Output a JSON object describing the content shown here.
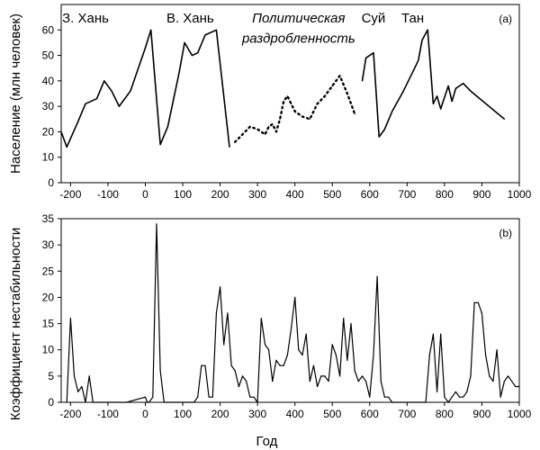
{
  "chart_data": [
    {
      "id": "a",
      "type": "line",
      "panel_label": "(a)",
      "ylabel": "Население (млн человек)",
      "xlabel": "",
      "xlim": [
        -225,
        1000
      ],
      "ylim": [
        0,
        70
      ],
      "xticks": [
        "-200",
        "-100",
        "0",
        "100",
        "200",
        "300",
        "400",
        "500",
        "600",
        "700",
        "800",
        "900",
        "1000"
      ],
      "xtick_values": [
        -200,
        -100,
        0,
        100,
        200,
        300,
        400,
        500,
        600,
        700,
        800,
        900,
        1000
      ],
      "yticks": [
        "0",
        "10",
        "20",
        "30",
        "40",
        "50",
        "60"
      ],
      "ytick_values": [
        0,
        10,
        20,
        30,
        40,
        50,
        60
      ],
      "era_labels": [
        {
          "text": "З. Хань",
          "x": -160,
          "y": 63,
          "italic": false
        },
        {
          "text": "В. Хань",
          "x": 120,
          "y": 63,
          "italic": false
        },
        {
          "text": "Политическая",
          "x": 410,
          "y": 63,
          "italic": true
        },
        {
          "text": "раздробленность",
          "x": 410,
          "y": 55,
          "italic": true
        },
        {
          "text": "Суй",
          "x": 610,
          "y": 63,
          "italic": false
        },
        {
          "text": "Тан",
          "x": 715,
          "y": 63,
          "italic": false
        }
      ],
      "series": [
        {
          "name": "Западная Хань",
          "style": "solid",
          "x": [
            -225,
            -210,
            -180,
            -160,
            -130,
            -110,
            -90,
            -70,
            -40,
            0,
            15
          ],
          "y": [
            20,
            14,
            24,
            31,
            33,
            40,
            36,
            30,
            36,
            53,
            60
          ]
        },
        {
          "name": "Восточная Хань",
          "style": "solid",
          "x": [
            15,
            40,
            60,
            90,
            105,
            125,
            140,
            160,
            190,
            225
          ],
          "y": [
            60,
            15,
            22,
            43,
            55,
            50,
            51,
            58,
            60,
            14
          ]
        },
        {
          "name": "Политическая раздробленность",
          "style": "dotted",
          "x": [
            240,
            260,
            280,
            300,
            320,
            330,
            340,
            350,
            360,
            370,
            380,
            390,
            400,
            420,
            440,
            460,
            480,
            500,
            520,
            540,
            560
          ],
          "y": [
            16,
            19,
            22,
            21,
            19,
            22,
            23,
            20,
            25,
            32,
            34,
            31,
            28,
            26,
            25,
            31,
            34,
            38,
            42,
            35,
            27
          ]
        },
        {
          "name": "Суй",
          "style": "solid",
          "x": [
            580,
            590,
            600,
            610,
            625
          ],
          "y": [
            40,
            49,
            50,
            51,
            18
          ]
        },
        {
          "name": "Тан",
          "style": "solid",
          "x": [
            625,
            640,
            660,
            690,
            720,
            730,
            740,
            755,
            770,
            780,
            790,
            810,
            820,
            830,
            840,
            850,
            870,
            960
          ],
          "y": [
            18,
            21,
            28,
            36,
            45,
            48,
            56,
            60,
            31,
            34,
            29,
            38,
            32,
            37,
            38,
            39,
            36,
            25
          ]
        }
      ]
    },
    {
      "id": "b",
      "type": "line",
      "panel_label": "(b)",
      "ylabel": "Коэффициент нестабильности",
      "xlabel": "Год",
      "xlim": [
        -225,
        1000
      ],
      "ylim": [
        0,
        35
      ],
      "xticks": [
        "-200",
        "-100",
        "0",
        "100",
        "200",
        "300",
        "400",
        "500",
        "600",
        "700",
        "800",
        "900",
        "1000"
      ],
      "xtick_values": [
        -200,
        -100,
        0,
        100,
        200,
        300,
        400,
        500,
        600,
        700,
        800,
        900,
        1000
      ],
      "yticks": [
        "0",
        "5",
        "10",
        "15",
        "20",
        "25",
        "30",
        "35"
      ],
      "ytick_values": [
        0,
        5,
        10,
        15,
        20,
        25,
        30,
        35
      ],
      "series": [
        {
          "name": "Нестабильность",
          "style": "solid",
          "x": [
            -210,
            -200,
            -190,
            -180,
            -170,
            -160,
            -150,
            -140,
            -130,
            -120,
            -100,
            -50,
            0,
            5,
            10,
            20,
            30,
            40,
            50,
            60,
            100,
            130,
            140,
            150,
            160,
            170,
            180,
            190,
            200,
            210,
            220,
            230,
            240,
            250,
            260,
            270,
            280,
            290,
            300,
            310,
            320,
            330,
            340,
            350,
            360,
            370,
            380,
            390,
            400,
            410,
            420,
            430,
            440,
            450,
            460,
            470,
            480,
            490,
            500,
            510,
            520,
            530,
            540,
            550,
            560,
            570,
            580,
            590,
            600,
            610,
            620,
            630,
            640,
            650,
            660,
            670,
            700,
            740,
            750,
            760,
            770,
            780,
            790,
            800,
            810,
            820,
            830,
            840,
            850,
            860,
            870,
            880,
            890,
            900,
            910,
            920,
            930,
            940,
            950,
            960,
            970,
            980,
            990,
            1000
          ],
          "y": [
            0,
            16,
            5,
            2,
            3,
            0,
            5,
            0,
            0,
            0,
            0,
            0,
            1,
            0,
            0,
            1,
            34,
            6,
            0,
            0,
            0,
            0,
            1,
            7,
            7,
            1,
            1,
            17,
            22,
            11,
            17,
            7,
            6,
            3,
            5,
            4,
            1,
            1,
            0,
            16,
            11,
            10,
            4,
            8,
            7,
            7,
            9,
            14,
            20,
            10,
            9,
            13,
            4,
            7,
            3,
            5,
            5,
            4,
            11,
            9,
            5,
            16,
            8,
            15,
            6,
            4,
            5,
            4,
            1,
            9,
            24,
            4,
            1,
            1,
            0,
            0,
            0,
            0,
            0,
            9,
            13,
            2,
            13,
            1,
            0,
            1,
            2,
            1,
            1,
            2,
            5,
            19,
            19,
            17,
            9,
            5,
            4,
            10,
            1,
            4,
            5,
            4,
            3,
            3
          ]
        }
      ]
    }
  ]
}
